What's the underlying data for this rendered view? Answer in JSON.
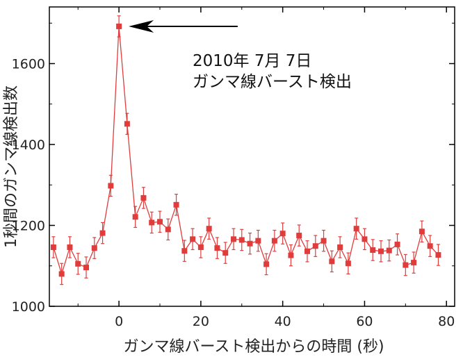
{
  "chart_data": {
    "type": "scatter",
    "xlabel": "ガンマ線バースト検出からの時間 (秒)",
    "ylabel": "1秒間のガンマ線検出数",
    "xlim": [
      -17,
      82
    ],
    "ylim": [
      1000,
      1740
    ],
    "xticks": [
      "0",
      "20",
      "40",
      "60",
      "80"
    ],
    "yticks": [
      "1000",
      "1200",
      "1400",
      "1600"
    ],
    "grid": false,
    "colors": {
      "series": "#e03c3c",
      "axis": "#000000",
      "arrow": "#000000"
    },
    "annotation": {
      "line1": "2010年 7月 7日",
      "line2": "ガンマ線バースト検出",
      "arrow_target": [
        0,
        1692
      ],
      "arrow_tail_x": 29
    },
    "series": [
      {
        "marker": "square",
        "error_bar": 26,
        "points": [
          [
            -16,
            1146
          ],
          [
            -14,
            1080
          ],
          [
            -12,
            1146
          ],
          [
            -10,
            1105
          ],
          [
            -8,
            1096
          ],
          [
            -6,
            1144
          ],
          [
            -4,
            1181
          ],
          [
            -2,
            1298
          ],
          [
            0,
            1692
          ],
          [
            2,
            1451
          ],
          [
            4,
            1221
          ],
          [
            6,
            1268
          ],
          [
            8,
            1207
          ],
          [
            10,
            1209
          ],
          [
            12,
            1190
          ],
          [
            14,
            1251
          ],
          [
            16,
            1137
          ],
          [
            18,
            1166
          ],
          [
            20,
            1146
          ],
          [
            22,
            1192
          ],
          [
            24,
            1144
          ],
          [
            26,
            1132
          ],
          [
            28,
            1166
          ],
          [
            30,
            1164
          ],
          [
            32,
            1155
          ],
          [
            34,
            1162
          ],
          [
            36,
            1104
          ],
          [
            38,
            1162
          ],
          [
            40,
            1180
          ],
          [
            42,
            1126
          ],
          [
            44,
            1175
          ],
          [
            46,
            1136
          ],
          [
            48,
            1149
          ],
          [
            50,
            1162
          ],
          [
            52,
            1111
          ],
          [
            54,
            1146
          ],
          [
            56,
            1106
          ],
          [
            58,
            1192
          ],
          [
            60,
            1166
          ],
          [
            62,
            1139
          ],
          [
            64,
            1136
          ],
          [
            66,
            1138
          ],
          [
            68,
            1153
          ],
          [
            70,
            1102
          ],
          [
            72,
            1108
          ],
          [
            74,
            1185
          ],
          [
            76,
            1149
          ],
          [
            78,
            1127
          ]
        ]
      }
    ]
  }
}
